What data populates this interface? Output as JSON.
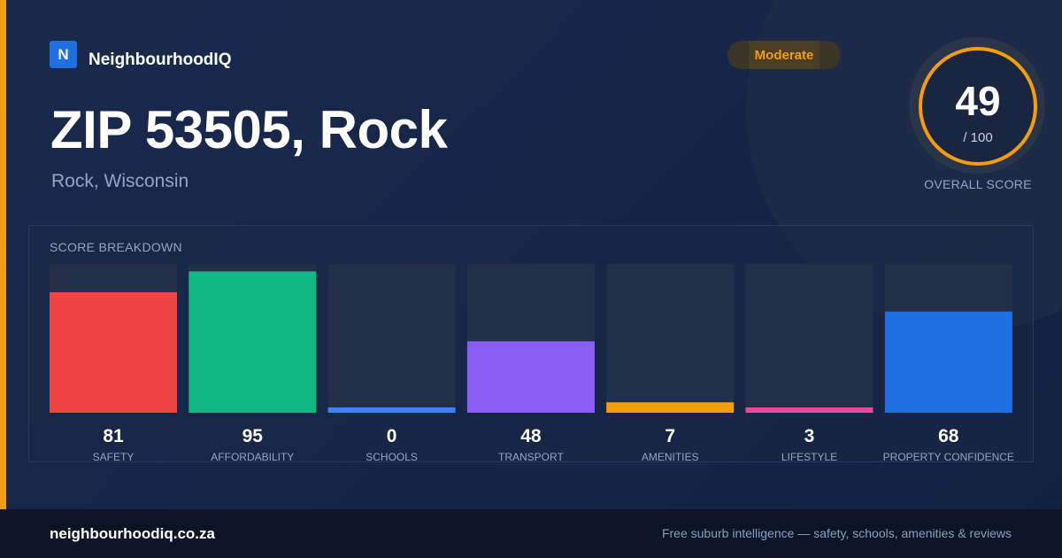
{
  "brand": {
    "logo_letter": "N",
    "name": "NeighbourhoodIQ"
  },
  "badge": {
    "label": "Moderate",
    "color": "#f59e0b"
  },
  "header": {
    "title": "ZIP 53505, Rock",
    "subtitle": "Rock, Wisconsin"
  },
  "overall": {
    "value": "49",
    "max_label": "/ 100",
    "label": "OVERALL SCORE"
  },
  "breakdown": {
    "title": "SCORE BREAKDOWN"
  },
  "footer": {
    "url": "neighbourhoodiq.co.za",
    "tagline": "Free suburb intelligence — safety, schools, amenities & reviews"
  },
  "chart_data": {
    "type": "bar",
    "title": "SCORE BREAKDOWN",
    "categories": [
      "SAFETY",
      "AFFORDABILITY",
      "SCHOOLS",
      "TRANSPORT",
      "AMENITIES",
      "LIFESTYLE",
      "PROPERTY CONFIDENCE"
    ],
    "values": [
      81,
      95,
      0,
      48,
      7,
      3,
      68
    ],
    "colors": [
      "#ef4444",
      "#10b981",
      "#3b82f6",
      "#8b5cf6",
      "#f59e0b",
      "#ec4899",
      "#1e6fe0"
    ],
    "ylim": [
      0,
      100
    ],
    "grid": false,
    "legend": "none"
  }
}
